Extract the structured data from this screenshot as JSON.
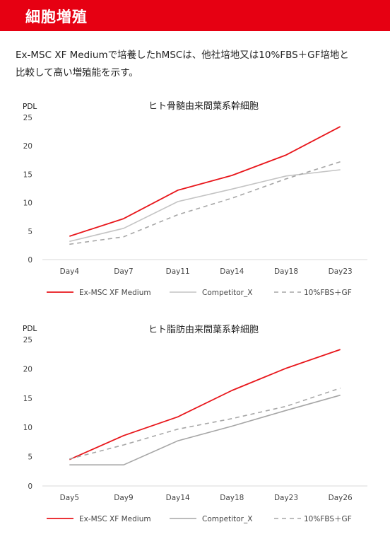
{
  "header": {
    "title": "細胞増殖"
  },
  "intro": {
    "line1": "Ex-MSC XF Mediumで培養したhMSCは、他社培地又は10%FBS＋GF培地と",
    "line2": "比較して高い増殖能を示す。"
  },
  "colors": {
    "header": "#e60012",
    "exmsc": "#e8161b",
    "competitor1": "#c4c4c4",
    "competitor2": "#a6a6a6",
    "fbs": "#a6a6a6"
  },
  "chart_data": [
    {
      "type": "line",
      "title": "ヒト骨髄由来間葉系幹細胞",
      "ylabel": "PDL",
      "xlabel": "",
      "ylim": [
        0,
        25
      ],
      "yticks": [
        "0",
        "5",
        "10",
        "15",
        "20",
        "25"
      ],
      "categories": [
        "Day4",
        "Day7",
        "Day11",
        "Day14",
        "Day18",
        "Day23"
      ],
      "legend_position": "bottom",
      "grid": false,
      "series": [
        {
          "name": "Ex-MSC XF Medium",
          "values": [
            4.1,
            7.2,
            12.2,
            14.8,
            18.4,
            23.4
          ]
        },
        {
          "name": "Competitor_X",
          "values": [
            3.2,
            5.5,
            10.2,
            12.4,
            14.7,
            15.8
          ]
        },
        {
          "name": "10%FBS＋GF",
          "values": [
            2.7,
            4.0,
            7.9,
            10.8,
            14.2,
            17.2
          ]
        }
      ]
    },
    {
      "type": "line",
      "title": "ヒト脂肪由来間葉系幹細胞",
      "ylabel": "PDL",
      "xlabel": "",
      "ylim": [
        0,
        25
      ],
      "yticks": [
        "0",
        "5",
        "10",
        "15",
        "20",
        "25"
      ],
      "categories": [
        "Day5",
        "Day9",
        "Day14",
        "Day18",
        "Day23",
        "Day26"
      ],
      "legend_position": "bottom",
      "grid": false,
      "series": [
        {
          "name": "Ex-MSC XF Medium",
          "values": [
            4.5,
            8.6,
            11.8,
            16.3,
            20.1,
            23.3
          ]
        },
        {
          "name": "Competitor_X",
          "values": [
            3.6,
            3.6,
            7.7,
            10.2,
            12.9,
            15.5
          ]
        },
        {
          "name": "10%FBS＋GF",
          "values": [
            4.6,
            7.0,
            9.7,
            11.5,
            13.6,
            16.7
          ]
        }
      ]
    }
  ]
}
